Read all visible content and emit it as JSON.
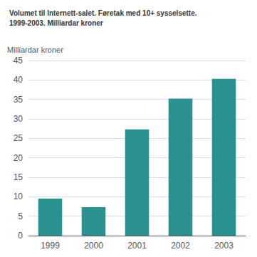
{
  "chart_data": {
    "type": "bar",
    "title": "Volumet til Internett-salet. Føretak med 10+ sysselsette.",
    "subtitle": "1999-2003. Milliardar kroner",
    "ylabel": "Milliardar kroner",
    "categories": [
      "1999",
      "2000",
      "2001",
      "2002",
      "2003"
    ],
    "values": [
      9.5,
      7.3,
      27.3,
      35.2,
      40.3
    ],
    "color": "#2a9090",
    "ylim": [
      0,
      45
    ],
    "yticks": [
      0,
      5,
      10,
      15,
      20,
      25,
      30,
      35,
      40,
      45
    ],
    "grid": true
  }
}
